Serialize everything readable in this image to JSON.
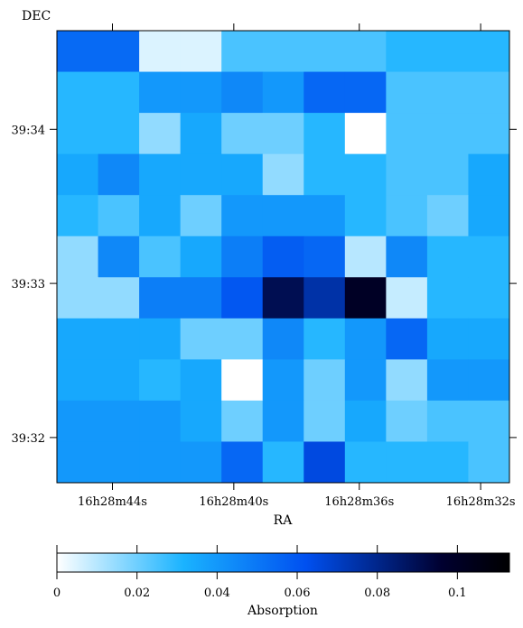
{
  "chart_data": {
    "type": "heatmap",
    "title": "",
    "xlabel": "RA",
    "ylabel": "DEC",
    "colorbar_label": "Absorption",
    "x_ticks": [
      "16h28m44s",
      "16h28m40s",
      "16h28m36s",
      "16h28m32s"
    ],
    "x_tick_positions": [
      1.35,
      4.3,
      7.35,
      10.3
    ],
    "y_ticks": [
      "39:34",
      "39:33",
      "39:32"
    ],
    "y_tick_positions": [
      2.4,
      6.15,
      9.9
    ],
    "colorbar_ticks": [
      0,
      0.02,
      0.04,
      0.06,
      0.08,
      0.1
    ],
    "colorbar_range": [
      0,
      0.113
    ],
    "colormap": [
      "#ffffff",
      "#1ab3ff",
      "#0050f0",
      "#000030",
      "#000000"
    ],
    "grid": false,
    "cols": 11,
    "rows": 11,
    "values": [
      [
        0.054,
        0.054,
        0.005,
        0.005,
        0.025,
        0.025,
        0.025,
        0.025,
        0.03,
        0.03,
        0.03
      ],
      [
        0.03,
        0.03,
        0.04,
        0.04,
        0.045,
        0.04,
        0.055,
        0.055,
        0.025,
        0.025,
        0.025
      ],
      [
        0.03,
        0.03,
        0.015,
        0.035,
        0.02,
        0.02,
        0.03,
        0.0,
        0.025,
        0.025,
        0.025
      ],
      [
        0.035,
        0.045,
        0.035,
        0.035,
        0.035,
        0.015,
        0.03,
        0.03,
        0.025,
        0.025,
        0.035
      ],
      [
        0.03,
        0.025,
        0.035,
        0.02,
        0.04,
        0.04,
        0.04,
        0.03,
        0.025,
        0.02,
        0.035
      ],
      [
        0.015,
        0.045,
        0.025,
        0.035,
        0.048,
        0.058,
        0.055,
        0.01,
        0.045,
        0.03,
        0.03
      ],
      [
        0.015,
        0.015,
        0.048,
        0.048,
        0.06,
        0.09,
        0.075,
        0.1,
        0.008,
        0.03,
        0.03
      ],
      [
        0.035,
        0.035,
        0.035,
        0.02,
        0.02,
        0.045,
        0.03,
        0.04,
        0.055,
        0.035,
        0.035
      ],
      [
        0.035,
        0.035,
        0.03,
        0.035,
        0.0,
        0.04,
        0.02,
        0.04,
        0.015,
        0.04,
        0.04
      ],
      [
        0.04,
        0.04,
        0.04,
        0.035,
        0.02,
        0.04,
        0.02,
        0.035,
        0.02,
        0.025,
        0.025
      ],
      [
        0.04,
        0.04,
        0.04,
        0.04,
        0.055,
        0.03,
        0.065,
        0.03,
        0.03,
        0.03,
        0.025
      ]
    ]
  }
}
